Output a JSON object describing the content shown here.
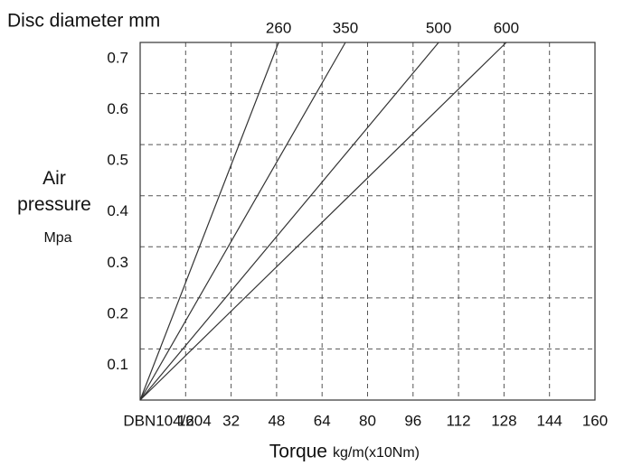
{
  "chart_data": {
    "type": "line",
    "title": "Disc diameter  mm",
    "y_label": "Air pressure",
    "y_unit": "Mpa",
    "x_label": "Torque",
    "x_unit": "kg/m(x10Nm)",
    "xlim": [
      0,
      160
    ],
    "xticks": [
      {
        "value": 0,
        "label": "DBN104/204"
      },
      16,
      32,
      48,
      64,
      80,
      96,
      112,
      128,
      144,
      160
    ],
    "ylim": [
      0,
      0.7
    ],
    "yticks": [
      0.1,
      0.2,
      0.3,
      0.4,
      0.5,
      0.6,
      0.7
    ],
    "grid": true,
    "series": [
      {
        "name": "260",
        "color": "#333333",
        "x": [
          0,
          48.7
        ],
        "values": [
          0,
          0.7
        ]
      },
      {
        "name": "350",
        "color": "#333333",
        "x": [
          0,
          72.2
        ],
        "values": [
          0,
          0.7
        ]
      },
      {
        "name": "500",
        "color": "#333333",
        "x": [
          0,
          105
        ],
        "values": [
          0,
          0.7
        ]
      },
      {
        "name": "600",
        "color": "#333333",
        "x": [
          0,
          128.8
        ],
        "values": [
          0,
          0.7
        ]
      }
    ]
  }
}
